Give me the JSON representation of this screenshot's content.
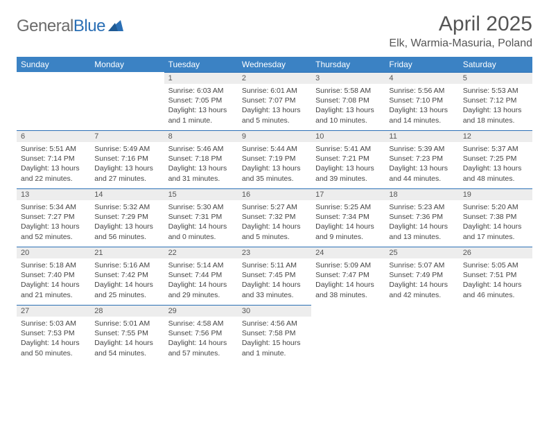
{
  "logo": {
    "text1": "General",
    "text2": "Blue"
  },
  "title": "April 2025",
  "location": "Elk, Warmia-Masuria, Poland",
  "colors": {
    "header_bg": "#3b82c4",
    "header_text": "#ffffff",
    "daynum_bg": "#ededed",
    "daynum_border": "#2a6fb5",
    "body_text": "#444444",
    "logo_gray": "#6b6b6b",
    "logo_blue": "#2a6fb5"
  },
  "weekdays": [
    "Sunday",
    "Monday",
    "Tuesday",
    "Wednesday",
    "Thursday",
    "Friday",
    "Saturday"
  ],
  "weeks": [
    [
      null,
      null,
      {
        "n": "1",
        "sr": "Sunrise: 6:03 AM",
        "ss": "Sunset: 7:05 PM",
        "dl": "Daylight: 13 hours and 1 minute."
      },
      {
        "n": "2",
        "sr": "Sunrise: 6:01 AM",
        "ss": "Sunset: 7:07 PM",
        "dl": "Daylight: 13 hours and 5 minutes."
      },
      {
        "n": "3",
        "sr": "Sunrise: 5:58 AM",
        "ss": "Sunset: 7:08 PM",
        "dl": "Daylight: 13 hours and 10 minutes."
      },
      {
        "n": "4",
        "sr": "Sunrise: 5:56 AM",
        "ss": "Sunset: 7:10 PM",
        "dl": "Daylight: 13 hours and 14 minutes."
      },
      {
        "n": "5",
        "sr": "Sunrise: 5:53 AM",
        "ss": "Sunset: 7:12 PM",
        "dl": "Daylight: 13 hours and 18 minutes."
      }
    ],
    [
      {
        "n": "6",
        "sr": "Sunrise: 5:51 AM",
        "ss": "Sunset: 7:14 PM",
        "dl": "Daylight: 13 hours and 22 minutes."
      },
      {
        "n": "7",
        "sr": "Sunrise: 5:49 AM",
        "ss": "Sunset: 7:16 PM",
        "dl": "Daylight: 13 hours and 27 minutes."
      },
      {
        "n": "8",
        "sr": "Sunrise: 5:46 AM",
        "ss": "Sunset: 7:18 PM",
        "dl": "Daylight: 13 hours and 31 minutes."
      },
      {
        "n": "9",
        "sr": "Sunrise: 5:44 AM",
        "ss": "Sunset: 7:19 PM",
        "dl": "Daylight: 13 hours and 35 minutes."
      },
      {
        "n": "10",
        "sr": "Sunrise: 5:41 AM",
        "ss": "Sunset: 7:21 PM",
        "dl": "Daylight: 13 hours and 39 minutes."
      },
      {
        "n": "11",
        "sr": "Sunrise: 5:39 AM",
        "ss": "Sunset: 7:23 PM",
        "dl": "Daylight: 13 hours and 44 minutes."
      },
      {
        "n": "12",
        "sr": "Sunrise: 5:37 AM",
        "ss": "Sunset: 7:25 PM",
        "dl": "Daylight: 13 hours and 48 minutes."
      }
    ],
    [
      {
        "n": "13",
        "sr": "Sunrise: 5:34 AM",
        "ss": "Sunset: 7:27 PM",
        "dl": "Daylight: 13 hours and 52 minutes."
      },
      {
        "n": "14",
        "sr": "Sunrise: 5:32 AM",
        "ss": "Sunset: 7:29 PM",
        "dl": "Daylight: 13 hours and 56 minutes."
      },
      {
        "n": "15",
        "sr": "Sunrise: 5:30 AM",
        "ss": "Sunset: 7:31 PM",
        "dl": "Daylight: 14 hours and 0 minutes."
      },
      {
        "n": "16",
        "sr": "Sunrise: 5:27 AM",
        "ss": "Sunset: 7:32 PM",
        "dl": "Daylight: 14 hours and 5 minutes."
      },
      {
        "n": "17",
        "sr": "Sunrise: 5:25 AM",
        "ss": "Sunset: 7:34 PM",
        "dl": "Daylight: 14 hours and 9 minutes."
      },
      {
        "n": "18",
        "sr": "Sunrise: 5:23 AM",
        "ss": "Sunset: 7:36 PM",
        "dl": "Daylight: 14 hours and 13 minutes."
      },
      {
        "n": "19",
        "sr": "Sunrise: 5:20 AM",
        "ss": "Sunset: 7:38 PM",
        "dl": "Daylight: 14 hours and 17 minutes."
      }
    ],
    [
      {
        "n": "20",
        "sr": "Sunrise: 5:18 AM",
        "ss": "Sunset: 7:40 PM",
        "dl": "Daylight: 14 hours and 21 minutes."
      },
      {
        "n": "21",
        "sr": "Sunrise: 5:16 AM",
        "ss": "Sunset: 7:42 PM",
        "dl": "Daylight: 14 hours and 25 minutes."
      },
      {
        "n": "22",
        "sr": "Sunrise: 5:14 AM",
        "ss": "Sunset: 7:44 PM",
        "dl": "Daylight: 14 hours and 29 minutes."
      },
      {
        "n": "23",
        "sr": "Sunrise: 5:11 AM",
        "ss": "Sunset: 7:45 PM",
        "dl": "Daylight: 14 hours and 33 minutes."
      },
      {
        "n": "24",
        "sr": "Sunrise: 5:09 AM",
        "ss": "Sunset: 7:47 PM",
        "dl": "Daylight: 14 hours and 38 minutes."
      },
      {
        "n": "25",
        "sr": "Sunrise: 5:07 AM",
        "ss": "Sunset: 7:49 PM",
        "dl": "Daylight: 14 hours and 42 minutes."
      },
      {
        "n": "26",
        "sr": "Sunrise: 5:05 AM",
        "ss": "Sunset: 7:51 PM",
        "dl": "Daylight: 14 hours and 46 minutes."
      }
    ],
    [
      {
        "n": "27",
        "sr": "Sunrise: 5:03 AM",
        "ss": "Sunset: 7:53 PM",
        "dl": "Daylight: 14 hours and 50 minutes."
      },
      {
        "n": "28",
        "sr": "Sunrise: 5:01 AM",
        "ss": "Sunset: 7:55 PM",
        "dl": "Daylight: 14 hours and 54 minutes."
      },
      {
        "n": "29",
        "sr": "Sunrise: 4:58 AM",
        "ss": "Sunset: 7:56 PM",
        "dl": "Daylight: 14 hours and 57 minutes."
      },
      {
        "n": "30",
        "sr": "Sunrise: 4:56 AM",
        "ss": "Sunset: 7:58 PM",
        "dl": "Daylight: 15 hours and 1 minute."
      },
      null,
      null,
      null
    ]
  ]
}
